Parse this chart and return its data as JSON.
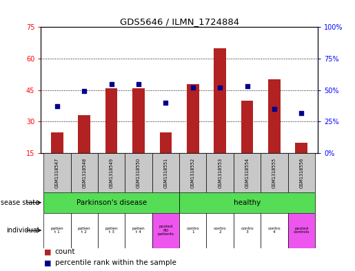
{
  "title": "GDS5646 / ILMN_1724884",
  "samples": [
    "GSM1318547",
    "GSM1318548",
    "GSM1318549",
    "GSM1318550",
    "GSM1318551",
    "GSM1318552",
    "GSM1318553",
    "GSM1318554",
    "GSM1318555",
    "GSM1318556"
  ],
  "bar_heights": [
    25,
    33,
    46,
    46,
    25,
    48,
    65,
    40,
    50,
    20
  ],
  "bar_base": 15,
  "percentile_ranks": [
    37,
    49,
    55,
    55,
    40,
    52,
    52,
    53,
    35,
    32
  ],
  "ylim_left": [
    15,
    75
  ],
  "ylim_right": [
    0,
    100
  ],
  "yticks_left": [
    15,
    30,
    45,
    60,
    75
  ],
  "yticks_right": [
    0,
    25,
    50,
    75,
    100
  ],
  "ytick_labels_right": [
    "0%",
    "25%",
    "50%",
    "75%",
    "100%"
  ],
  "bar_color": "#B22222",
  "dot_color": "#00008B",
  "sample_bg_color": "#C8C8C8",
  "pd_color": "#55DD55",
  "healthy_color": "#55DD55",
  "pooled_color": "#EE55EE",
  "white_color": "#FFFFFF",
  "legend_count_color": "#B22222",
  "legend_dot_color": "#00008B",
  "ind_labels": [
    "patien\nt 1",
    "patien\nt 2",
    "patien\nt 3",
    "patien\nt 4",
    "pooled\nPD\npatients",
    "contro\n1",
    "contro\n2",
    "contro\n3",
    "contro\n4",
    "pooled\ncontrols"
  ],
  "ind_colors": [
    "#FFFFFF",
    "#FFFFFF",
    "#FFFFFF",
    "#FFFFFF",
    "#EE55EE",
    "#FFFFFF",
    "#FFFFFF",
    "#FFFFFF",
    "#FFFFFF",
    "#EE55EE"
  ]
}
